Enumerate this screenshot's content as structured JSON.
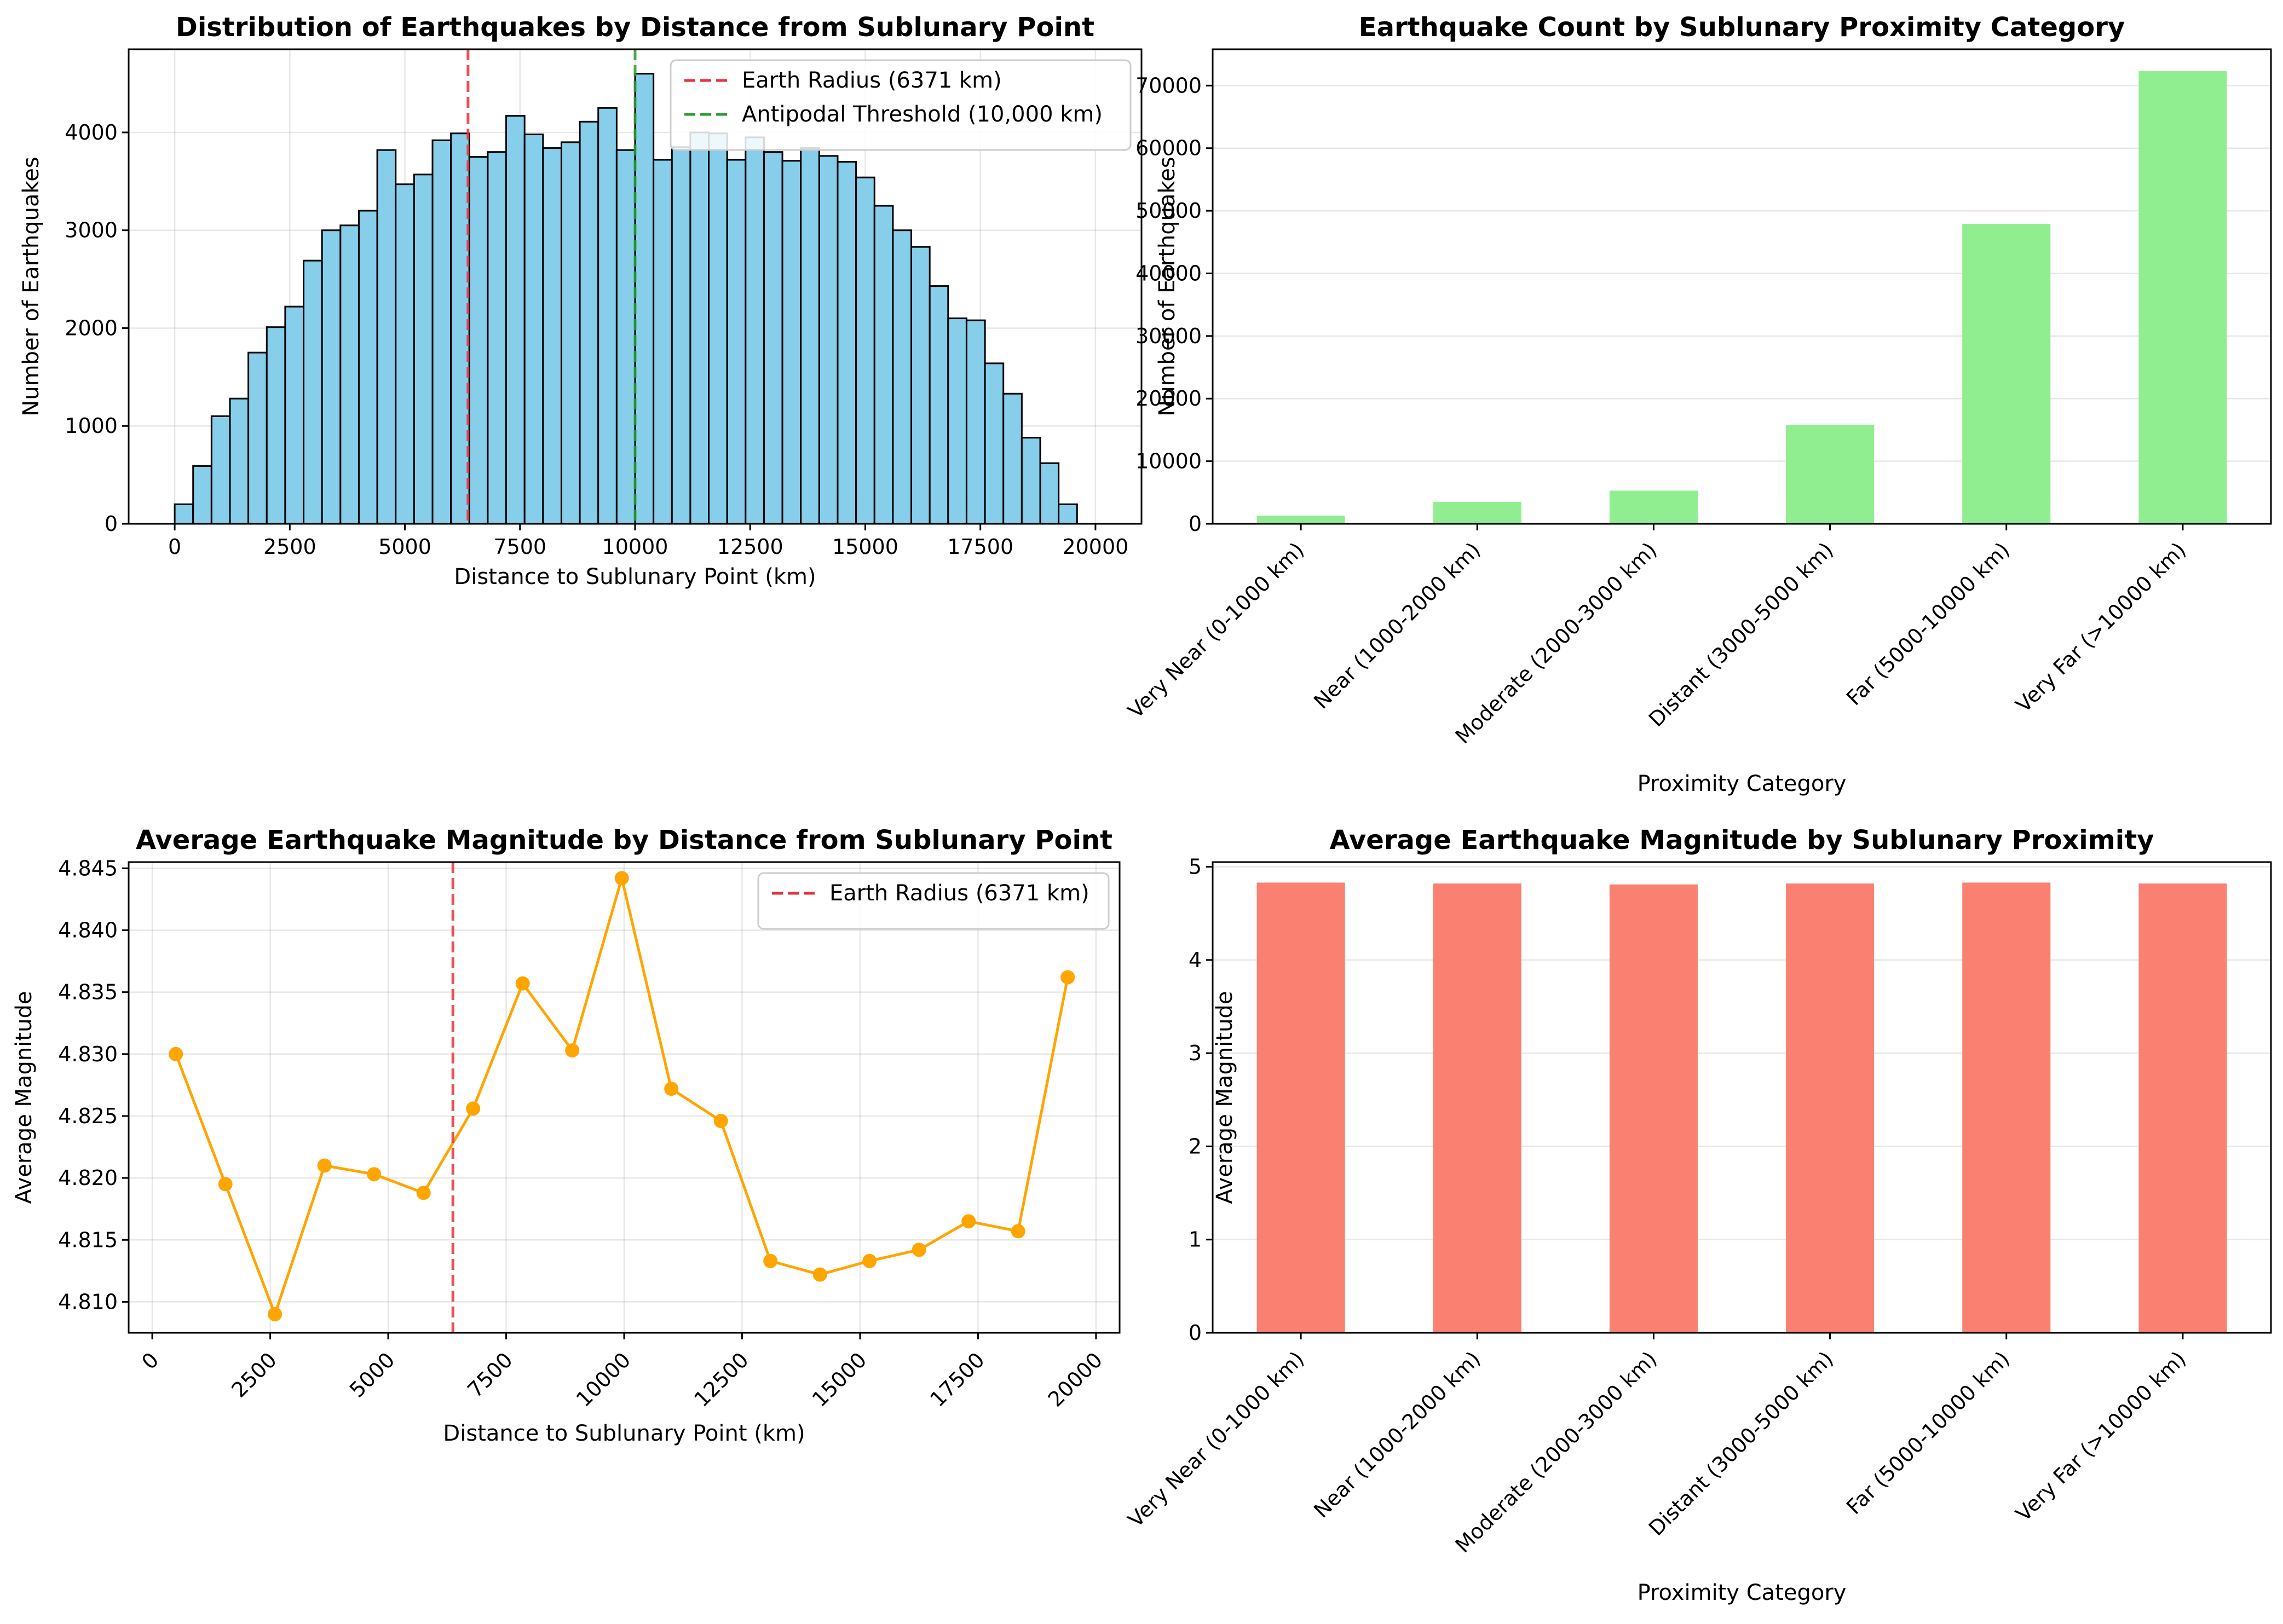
{
  "chart_data": [
    {
      "type": "bar",
      "subtype": "histogram",
      "title": "Distribution of Earthquakes by Distance from Sublunary Point",
      "xlabel": "Distance to Sublunary Point (km)",
      "ylabel": "Number of Earthquakes",
      "xlim": [
        -1000,
        21000
      ],
      "ylim": [
        0,
        4850
      ],
      "xticks": [
        0,
        2500,
        5000,
        7500,
        10000,
        12500,
        15000,
        17500,
        20000
      ],
      "yticks": [
        0,
        1000,
        2000,
        3000,
        4000
      ],
      "bin_start": 0,
      "bin_width": 400,
      "values": [
        200,
        590,
        1100,
        1280,
        1750,
        2010,
        2220,
        2690,
        3000,
        3050,
        3200,
        3820,
        3470,
        3570,
        3920,
        3990,
        3750,
        3800,
        4170,
        3980,
        3840,
        3900,
        4110,
        4250,
        3820,
        4600,
        3720,
        3850,
        4000,
        3990,
        3720,
        3950,
        3800,
        3710,
        3840,
        3760,
        3700,
        3540,
        3250,
        3000,
        2830,
        2430,
        2100,
        2080,
        1640,
        1330,
        880,
        620,
        200
      ],
      "bar_color": "#87CEEB",
      "edge_color": "#000000",
      "grid": true,
      "legend_position": "upper-right",
      "reference_lines": [
        {
          "name": "Earth Radius (6371 km)",
          "x": 6371,
          "color": "#E8333A"
        },
        {
          "name": "Antipodal Threshold (10,000 km)",
          "x": 10000,
          "color": "#2E9E2E"
        }
      ]
    },
    {
      "type": "bar",
      "title": "Earthquake Count by Sublunary Proximity Category",
      "xlabel": "Proximity Category",
      "ylabel": "Number of Earthquakes",
      "ylim": [
        0,
        75800
      ],
      "yticks": [
        0,
        10000,
        20000,
        30000,
        40000,
        50000,
        60000,
        70000
      ],
      "categories": [
        "Very Near (0-1000 km)",
        "Near (1000-2000 km)",
        "Moderate (2000-3000 km)",
        "Distant (3000-5000 km)",
        "Far (5000-10000 km)",
        "Very Far (>10000 km)"
      ],
      "values": [
        1300,
        3500,
        5300,
        15800,
        47900,
        72300
      ],
      "bar_color": "#90EE90",
      "grid": true
    },
    {
      "type": "line",
      "title": "Average Earthquake Magnitude by Distance from Sublunary Point",
      "xlabel": "Distance to Sublunary Point (km)",
      "ylabel": "Average Magnitude",
      "xlim": [
        -500,
        20500
      ],
      "ylim": [
        4.8075,
        4.8455
      ],
      "xticks": [
        0,
        2500,
        5000,
        7500,
        10000,
        12500,
        15000,
        17500,
        20000
      ],
      "yticks": [
        4.81,
        4.815,
        4.82,
        4.825,
        4.83,
        4.835,
        4.84,
        4.845
      ],
      "ytick_labels": [
        "4.810",
        "4.815",
        "4.820",
        "4.825",
        "4.830",
        "4.835",
        "4.840",
        "4.845"
      ],
      "x": [
        500,
        1550,
        2600,
        3650,
        4700,
        5750,
        6800,
        7850,
        8900,
        9950,
        11000,
        12050,
        13100,
        14150,
        15200,
        16250,
        17300,
        18350,
        19400
      ],
      "y": [
        4.83,
        4.8195,
        4.809,
        4.821,
        4.8203,
        4.8188,
        4.8256,
        4.8357,
        4.8303,
        4.8442,
        4.8272,
        4.8246,
        4.8133,
        4.8122,
        4.8133,
        4.8142,
        4.8165,
        4.8157,
        4.8362
      ],
      "line_color": "#FFA500",
      "marker": "circle",
      "grid": true,
      "legend_position": "upper-right",
      "reference_lines": [
        {
          "name": "Earth Radius (6371 km)",
          "x": 6371,
          "color": "#E8333A"
        }
      ]
    },
    {
      "type": "bar",
      "title": "Average Earthquake Magnitude by Sublunary Proximity",
      "xlabel": "Proximity Category",
      "ylabel": "Average Magnitude",
      "ylim": [
        0,
        5.05
      ],
      "yticks": [
        0,
        1,
        2,
        3,
        4,
        5
      ],
      "categories": [
        "Very Near (0-1000 km)",
        "Near (1000-2000 km)",
        "Moderate (2000-3000 km)",
        "Distant (3000-5000 km)",
        "Far (5000-10000 km)",
        "Very Far (>10000 km)"
      ],
      "values": [
        4.83,
        4.82,
        4.81,
        4.82,
        4.83,
        4.82
      ],
      "bar_color": "#FA8072",
      "grid": true
    }
  ]
}
